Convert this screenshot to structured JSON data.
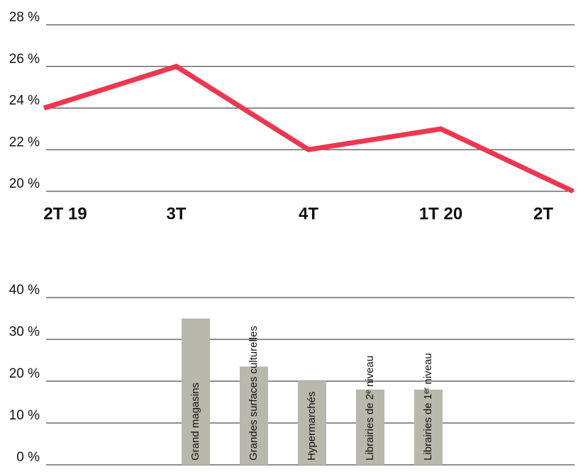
{
  "chart_data": [
    {
      "type": "line",
      "categories": [
        "2T 19",
        "3T",
        "4T",
        "1T 20",
        "2T"
      ],
      "values": [
        24,
        26,
        22,
        23,
        20
      ],
      "color": "#f0354f",
      "ylim": [
        20,
        28
      ],
      "yticks": [
        {
          "value": 20,
          "label": "20 %"
        },
        {
          "value": 22,
          "label": "22 %"
        },
        {
          "value": 24,
          "label": "24 %"
        },
        {
          "value": 26,
          "label": "26 %"
        },
        {
          "value": 28,
          "label": "28 %"
        }
      ],
      "grid": true
    },
    {
      "type": "bar",
      "categories": [
        "Grand magasins",
        "Grandes surfaces culturelles",
        "Hypermarchés",
        "Librairies de 2ᵉ niveau",
        "Librairies de 1ᵉʳ niveau"
      ],
      "values": [
        35,
        23.5,
        20,
        18,
        18
      ],
      "color": "#b8b8ad",
      "ylim": [
        0,
        40
      ],
      "yticks": [
        {
          "value": 0,
          "label": "0 %"
        },
        {
          "value": 10,
          "label": "10 %"
        },
        {
          "value": 20,
          "label": "20 %"
        },
        {
          "value": 30,
          "label": "30 %"
        },
        {
          "value": 40,
          "label": "40 %"
        }
      ],
      "grid": true
    }
  ]
}
